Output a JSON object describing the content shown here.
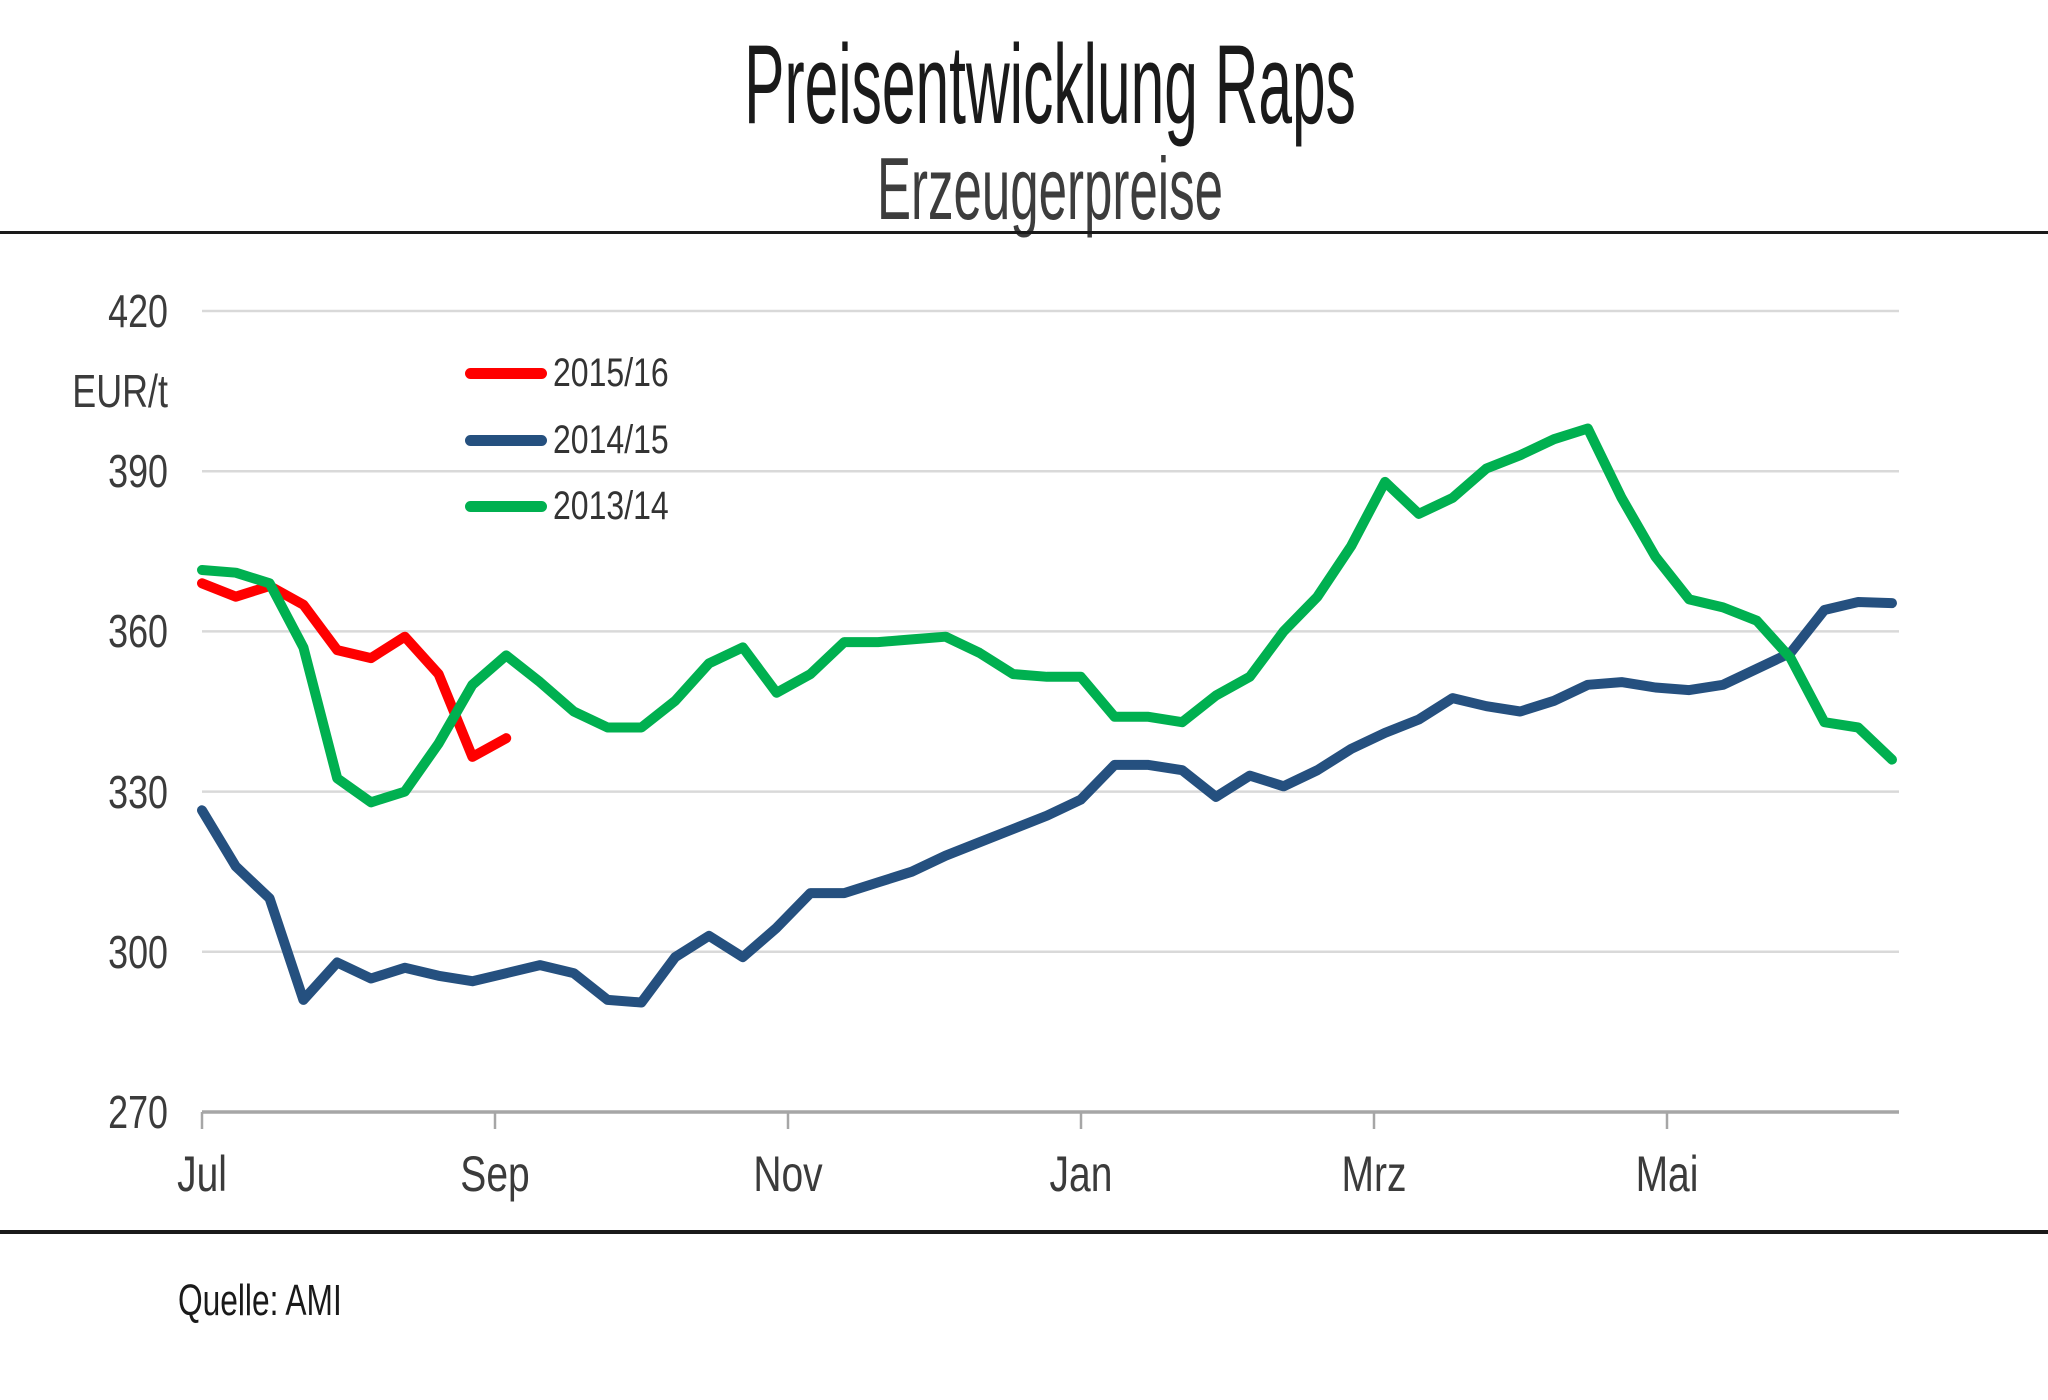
{
  "chart_data": {
    "type": "line",
    "title": "Preisentwicklung Raps",
    "subtitle": "Erzeugerpreise",
    "source": "Quelle: AMI",
    "ylabel": "EUR/t",
    "ylim": [
      270,
      420
    ],
    "y_ticks": [
      420,
      390,
      360,
      330,
      300,
      270
    ],
    "x_tick_labels": [
      "Jul",
      "Sep",
      "Nov",
      "Jan",
      "Mrz",
      "Mai"
    ],
    "x_unit": "weekly quotations, week index 0 = start of July",
    "grid": "horizontal",
    "legend_position": "inside-top-left",
    "colors": {
      "gridline": "#d9d9d9",
      "axis": "#a6a6a6",
      "tick_text": "#3b3b3b",
      "series_2015_16": "#ff0000",
      "series_2014_15": "#25507f",
      "series_2013_14": "#00b050"
    },
    "series": [
      {
        "name": "2015/16",
        "color": "#ff0000",
        "week_start": 0,
        "values": [
          369,
          366.5,
          368.5,
          365,
          356.5,
          355,
          359,
          352,
          336.5,
          340
        ]
      },
      {
        "name": "2014/15",
        "color": "#25507f",
        "week_start": 0,
        "values": [
          326.5,
          316,
          310,
          291,
          298,
          295,
          297,
          295.5,
          294.5,
          296,
          297.5,
          296,
          291,
          290.5,
          299,
          303,
          299,
          304.5,
          311,
          311,
          313,
          315,
          318,
          320.5,
          323,
          325.5,
          328.5,
          335,
          335,
          334,
          329,
          333,
          331,
          334,
          338,
          341,
          343.5,
          347.5,
          346,
          345,
          347,
          350,
          350.5,
          349.5,
          349,
          350,
          353,
          356,
          364,
          365.5,
          365.3
        ]
      },
      {
        "name": "2013/14",
        "color": "#00b050",
        "week_start": 0,
        "values": [
          371.5,
          371,
          369,
          357,
          332.5,
          328,
          330,
          339,
          350,
          355.5,
          350.5,
          345,
          342,
          342,
          347,
          354,
          357,
          348.5,
          352,
          358,
          358,
          358.5,
          359,
          356,
          352,
          351.5,
          351.5,
          344,
          344,
          343,
          348,
          351.5,
          360,
          366.5,
          376,
          388,
          382,
          385,
          390.5,
          393,
          396,
          398,
          385,
          374,
          366,
          364.5,
          362,
          355,
          343,
          342,
          336
        ]
      }
    ]
  }
}
